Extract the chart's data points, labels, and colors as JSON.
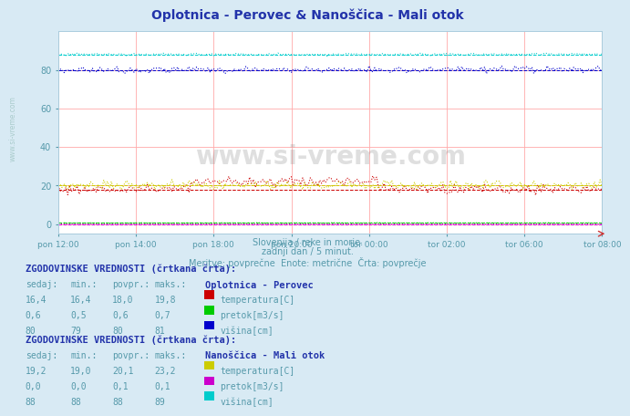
{
  "title": "Oplotnica - Perovec & Nanoščica - Mali otok",
  "subtitle_lines": [
    "Slovenija / reke in morje.",
    "zadnji dan / 5 minut.",
    "Meritve: povprečne  Enote: metrične  Črta: povprečje"
  ],
  "watermark": "www.si-vreme.com",
  "x_ticks": [
    "pon 12:00",
    "pon 14:00",
    "pon 18:00",
    "pon 20:00",
    "tor 00:00",
    "tor 02:00",
    "tor 06:00",
    "tor 08:00"
  ],
  "n_points": 288,
  "background_color": "#d8eaf4",
  "plot_bg_color": "#ffffff",
  "grid_color": "#ffaaaa",
  "ylim": [
    -5,
    100
  ],
  "yticks": [
    0,
    20,
    40,
    60,
    80
  ],
  "series": {
    "oplot_temp": {
      "color": "#cc0000",
      "avg": 18.0,
      "min_v": 15.0,
      "max_v": 25.0,
      "noise": 1.2
    },
    "oplot_pretok": {
      "color": "#00cc00",
      "avg": 0.6,
      "min_v": 0.0,
      "max_v": 1.0,
      "noise": 0.05
    },
    "oplot_visina": {
      "color": "#0000cc",
      "avg": 80.0,
      "min_v": 78.0,
      "max_v": 82.0,
      "noise": 0.8
    },
    "nano_temp": {
      "color": "#cccc00",
      "avg": 20.1,
      "min_v": 18.0,
      "max_v": 25.0,
      "noise": 1.2
    },
    "nano_pretok": {
      "color": "#cc00cc",
      "avg": 0.05,
      "min_v": 0.0,
      "max_v": 0.2,
      "noise": 0.02
    },
    "nano_visina": {
      "color": "#00cccc",
      "avg": 88.0,
      "min_v": 87.0,
      "max_v": 90.0,
      "noise": 0.3
    }
  },
  "legend1_title": "Oplotnica - Perovec",
  "legend1": [
    {
      "label": "temperatura[C]",
      "color": "#cc0000"
    },
    {
      "label": "pretok[m3/s]",
      "color": "#00cc00"
    },
    {
      "label": "višina[cm]",
      "color": "#0000cc"
    }
  ],
  "legend2_title": "Nanoščica - Mali otok",
  "legend2": [
    {
      "label": "temperatura[C]",
      "color": "#cccc00"
    },
    {
      "label": "pretok[m3/s]",
      "color": "#cc00cc"
    },
    {
      "label": "višina[cm]",
      "color": "#00cccc"
    }
  ],
  "table1_header": [
    "sedaj:",
    "min.:",
    "povpr.:",
    "maks.:"
  ],
  "table1_rows": [
    [
      "16,4",
      "16,4",
      "18,0",
      "19,8"
    ],
    [
      "0,6",
      "0,5",
      "0,6",
      "0,7"
    ],
    [
      "80",
      "79",
      "80",
      "81"
    ]
  ],
  "table2_rows": [
    [
      "19,2",
      "19,0",
      "20,1",
      "23,2"
    ],
    [
      "0,0",
      "0,0",
      "0,1",
      "0,1"
    ],
    [
      "88",
      "88",
      "88",
      "89"
    ]
  ],
  "hist_label": "ZGODOVINSKE VREDNOSTI (črtkana črta):"
}
